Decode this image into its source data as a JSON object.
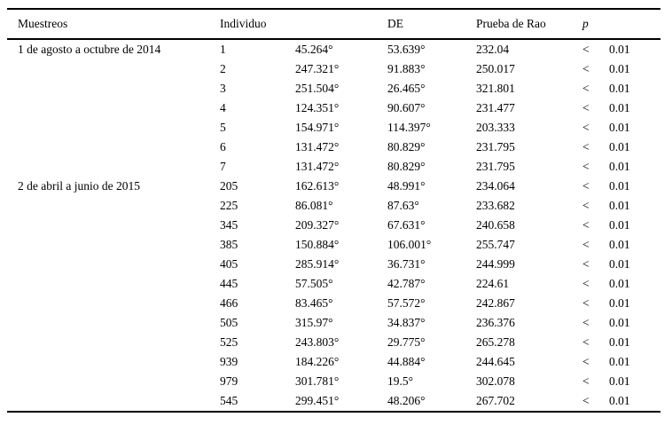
{
  "table": {
    "headers": {
      "muestreos": "Muestreos",
      "individuo": "Individuo",
      "media": "",
      "de": "DE",
      "rao": "Prueba de Rao",
      "p": "p"
    },
    "groups": [
      {
        "label": "1 de agosto a octubre de 2014",
        "rows": [
          {
            "individuo": "1",
            "media": "45.264°",
            "de": "53.639°",
            "rao": "232.04",
            "p_rel": "<",
            "p_val": "0.01"
          },
          {
            "individuo": "2",
            "media": "247.321°",
            "de": "91.883°",
            "rao": "250.017",
            "p_rel": "<",
            "p_val": "0.01"
          },
          {
            "individuo": "3",
            "media": "251.504°",
            "de": "26.465°",
            "rao": "321.801",
            "p_rel": "<",
            "p_val": "0.01"
          },
          {
            "individuo": "4",
            "media": "124.351°",
            "de": "90.607°",
            "rao": "231.477",
            "p_rel": "<",
            "p_val": "0.01"
          },
          {
            "individuo": "5",
            "media": "154.971°",
            "de": "114.397°",
            "rao": "203.333",
            "p_rel": "<",
            "p_val": "0.01"
          },
          {
            "individuo": "6",
            "media": "131.472°",
            "de": "80.829°",
            "rao": "231.795",
            "p_rel": "<",
            "p_val": "0.01"
          },
          {
            "individuo": "7",
            "media": "131.472°",
            "de": "80.829°",
            "rao": "231.795",
            "p_rel": "<",
            "p_val": "0.01"
          }
        ]
      },
      {
        "label": "2 de abril a junio de 2015",
        "rows": [
          {
            "individuo": "205",
            "media": "162.613°",
            "de": "48.991°",
            "rao": "234.064",
            "p_rel": "<",
            "p_val": "0.01"
          },
          {
            "individuo": "225",
            "media": "86.081°",
            "de": "87.63°",
            "rao": "233.682",
            "p_rel": "<",
            "p_val": "0.01"
          },
          {
            "individuo": "345",
            "media": "209.327°",
            "de": "67.631°",
            "rao": "240.658",
            "p_rel": "<",
            "p_val": "0.01"
          },
          {
            "individuo": "385",
            "media": "150.884°",
            "de": "106.001°",
            "rao": "255.747",
            "p_rel": "<",
            "p_val": "0.01"
          },
          {
            "individuo": "405",
            "media": "285.914°",
            "de": "36.731°",
            "rao": "244.999",
            "p_rel": "<",
            "p_val": "0.01"
          },
          {
            "individuo": "445",
            "media": "57.505°",
            "de": "42.787°",
            "rao": "224.61",
            "p_rel": "<",
            "p_val": "0.01"
          },
          {
            "individuo": "466",
            "media": "83.465°",
            "de": "57.572°",
            "rao": "242.867",
            "p_rel": "<",
            "p_val": "0.01"
          },
          {
            "individuo": "505",
            "media": "315.97°",
            "de": "34.837°",
            "rao": "236.376",
            "p_rel": "<",
            "p_val": "0.01"
          },
          {
            "individuo": "525",
            "media": "243.803°",
            "de": "29.775°",
            "rao": "265.278",
            "p_rel": "<",
            "p_val": "0.01"
          },
          {
            "individuo": "939",
            "media": "184.226°",
            "de": "44.884°",
            "rao": "244.645",
            "p_rel": "<",
            "p_val": "0.01"
          },
          {
            "individuo": "979",
            "media": "301.781°",
            "de": "19.5°",
            "rao": "302.078",
            "p_rel": "<",
            "p_val": "0.01"
          },
          {
            "individuo": "545",
            "media": "299.451°",
            "de": "48.206°",
            "rao": "267.702",
            "p_rel": "<",
            "p_val": "0.01"
          }
        ]
      }
    ]
  }
}
